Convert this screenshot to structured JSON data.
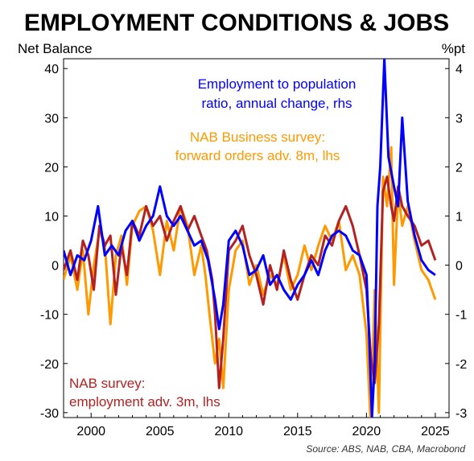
{
  "chart_data": {
    "type": "line",
    "title": "EMPLOYMENT CONDITIONS & JOBS",
    "ylabel_left": "Net Balance",
    "ylabel_right": "%pt",
    "source": "Source: ABS, NAB, CBA, Macrobond",
    "x_ticks": [
      "2000",
      "2005",
      "2010",
      "2015",
      "2020",
      "2025"
    ],
    "xlim": [
      1998,
      2026
    ],
    "ylim_left": [
      -31,
      42
    ],
    "ylim_right": [
      -3.1,
      4.2
    ],
    "y_ticks_left": [
      "-30",
      "-20",
      "-10",
      "0",
      "10",
      "20",
      "30",
      "40"
    ],
    "y_ticks_right": [
      "-3",
      "-2",
      "-1",
      "0",
      "1",
      "2",
      "3",
      "4"
    ],
    "grid": false,
    "legend": "inline annotations",
    "annotations": {
      "blue": [
        "Employment to population",
        "ratio, annual change, rhs"
      ],
      "orange": [
        "NAB Business survey:",
        "forward orders adv. 8m, lhs"
      ],
      "red": [
        "NAB survey:",
        "employment adv. 3m, lhs"
      ]
    },
    "colors": {
      "blue": "#0000ff",
      "orange": "#ff9900",
      "red": "#b22222"
    },
    "series": [
      {
        "axis": "right",
        "color": "#0000ff",
        "x": [
          1998.0,
          1998.5,
          1999.0,
          1999.5,
          2000.0,
          2000.5,
          2001.0,
          2001.5,
          2002.0,
          2002.5,
          2003.0,
          2003.5,
          2004.0,
          2004.5,
          2005.0,
          2005.5,
          2006.0,
          2006.5,
          2007.0,
          2007.5,
          2008.0,
          2008.5,
          2009.0,
          2009.3,
          2009.6,
          2010.0,
          2010.5,
          2011.0,
          2011.5,
          2012.0,
          2012.5,
          2013.0,
          2013.5,
          2014.0,
          2014.5,
          2015.0,
          2015.5,
          2016.0,
          2016.5,
          2017.0,
          2017.5,
          2018.0,
          2018.5,
          2019.0,
          2019.5,
          2020.0,
          2020.2,
          2020.4,
          2020.6,
          2020.8,
          2021.0,
          2021.3,
          2021.6,
          2022.0,
          2022.3,
          2022.6,
          2023.0,
          2023.5,
          2024.0,
          2024.5,
          2025.0
        ],
        "values": [
          0.3,
          -0.2,
          0.2,
          0.1,
          0.5,
          1.2,
          0.2,
          0.4,
          0.2,
          0.7,
          0.9,
          0.5,
          0.8,
          1.0,
          1.6,
          1.0,
          0.8,
          1.0,
          0.7,
          0.4,
          0.5,
          0.1,
          -0.7,
          -1.3,
          -0.8,
          0.5,
          0.7,
          0.4,
          -0.2,
          -0.1,
          0.2,
          -0.4,
          -0.2,
          -0.5,
          -0.7,
          -0.4,
          -0.2,
          0.1,
          -0.2,
          0.3,
          0.6,
          0.7,
          0.6,
          0.3,
          0.2,
          -0.2,
          -1.5,
          -3.1,
          -2.0,
          1.2,
          2.0,
          4.2,
          2.2,
          1.6,
          1.2,
          3.0,
          1.3,
          0.6,
          0.1,
          -0.1,
          -0.2
        ]
      },
      {
        "axis": "left",
        "color": "#ff9900",
        "x": [
          1998.0,
          1998.5,
          1999.0,
          1999.4,
          1999.8,
          2000.2,
          2000.6,
          2001.0,
          2001.4,
          2001.8,
          2002.2,
          2002.6,
          2003.0,
          2003.5,
          2004.0,
          2004.5,
          2005.0,
          2005.5,
          2006.0,
          2006.5,
          2007.0,
          2007.5,
          2008.0,
          2008.3,
          2008.6,
          2009.0,
          2009.3,
          2009.6,
          2010.0,
          2010.5,
          2011.0,
          2011.5,
          2012.0,
          2012.5,
          2013.0,
          2013.5,
          2014.0,
          2014.5,
          2015.0,
          2015.5,
          2016.0,
          2016.5,
          2017.0,
          2017.5,
          2018.0,
          2018.5,
          2019.0,
          2019.5,
          2020.0,
          2020.3,
          2020.6,
          2020.9,
          2021.2,
          2021.5,
          2021.8,
          2022.0,
          2022.3,
          2022.6,
          2023.0,
          2023.5,
          2024.0,
          2024.5,
          2025.0
        ],
        "values": [
          -3,
          2,
          -5,
          3,
          -10,
          0,
          7,
          4,
          -12,
          2,
          6,
          -4,
          8,
          11,
          12,
          7,
          -2,
          9,
          3,
          12,
          8,
          -2,
          4,
          -2,
          -10,
          -20,
          -15,
          -25,
          -5,
          3,
          5,
          -4,
          0,
          -6,
          -2,
          -4,
          2,
          -5,
          -2,
          4,
          -1,
          4,
          8,
          5,
          9,
          -1,
          2,
          -2,
          -14,
          -32,
          -5,
          -30,
          18,
          12,
          24,
          -4,
          15,
          8,
          12,
          5,
          -1,
          -3,
          -7
        ]
      },
      {
        "axis": "left",
        "color": "#b22222",
        "x": [
          1998.0,
          1998.5,
          1999.0,
          1999.4,
          1999.8,
          2000.2,
          2000.6,
          2001.0,
          2001.4,
          2001.8,
          2002.2,
          2002.6,
          2003.0,
          2003.5,
          2004.0,
          2004.5,
          2005.0,
          2005.5,
          2006.0,
          2006.5,
          2007.0,
          2007.5,
          2008.0,
          2008.4,
          2008.8,
          2009.0,
          2009.3,
          2009.6,
          2010.0,
          2010.5,
          2011.0,
          2011.5,
          2012.0,
          2012.5,
          2013.0,
          2013.5,
          2014.0,
          2014.5,
          2015.0,
          2015.5,
          2016.0,
          2016.5,
          2017.0,
          2017.5,
          2018.0,
          2018.5,
          2019.0,
          2019.5,
          2020.0,
          2020.3,
          2020.6,
          2020.9,
          2021.2,
          2021.5,
          2021.8,
          2022.0,
          2022.3,
          2022.6,
          2023.0,
          2023.5,
          2024.0,
          2024.5,
          2025.0
        ],
        "values": [
          -1,
          3,
          -3,
          5,
          2,
          -5,
          8,
          4,
          6,
          -6,
          4,
          -2,
          9,
          6,
          12,
          8,
          10,
          5,
          9,
          12,
          7,
          10,
          6,
          3,
          -3,
          -10,
          -25,
          -15,
          3,
          5,
          8,
          2,
          -2,
          -8,
          0,
          -5,
          3,
          -3,
          -7,
          -2,
          2,
          0,
          6,
          4,
          9,
          12,
          8,
          2,
          -5,
          -18,
          -24,
          -12,
          15,
          18,
          12,
          9,
          16,
          12,
          10,
          8,
          4,
          5,
          1
        ]
      }
    ]
  }
}
